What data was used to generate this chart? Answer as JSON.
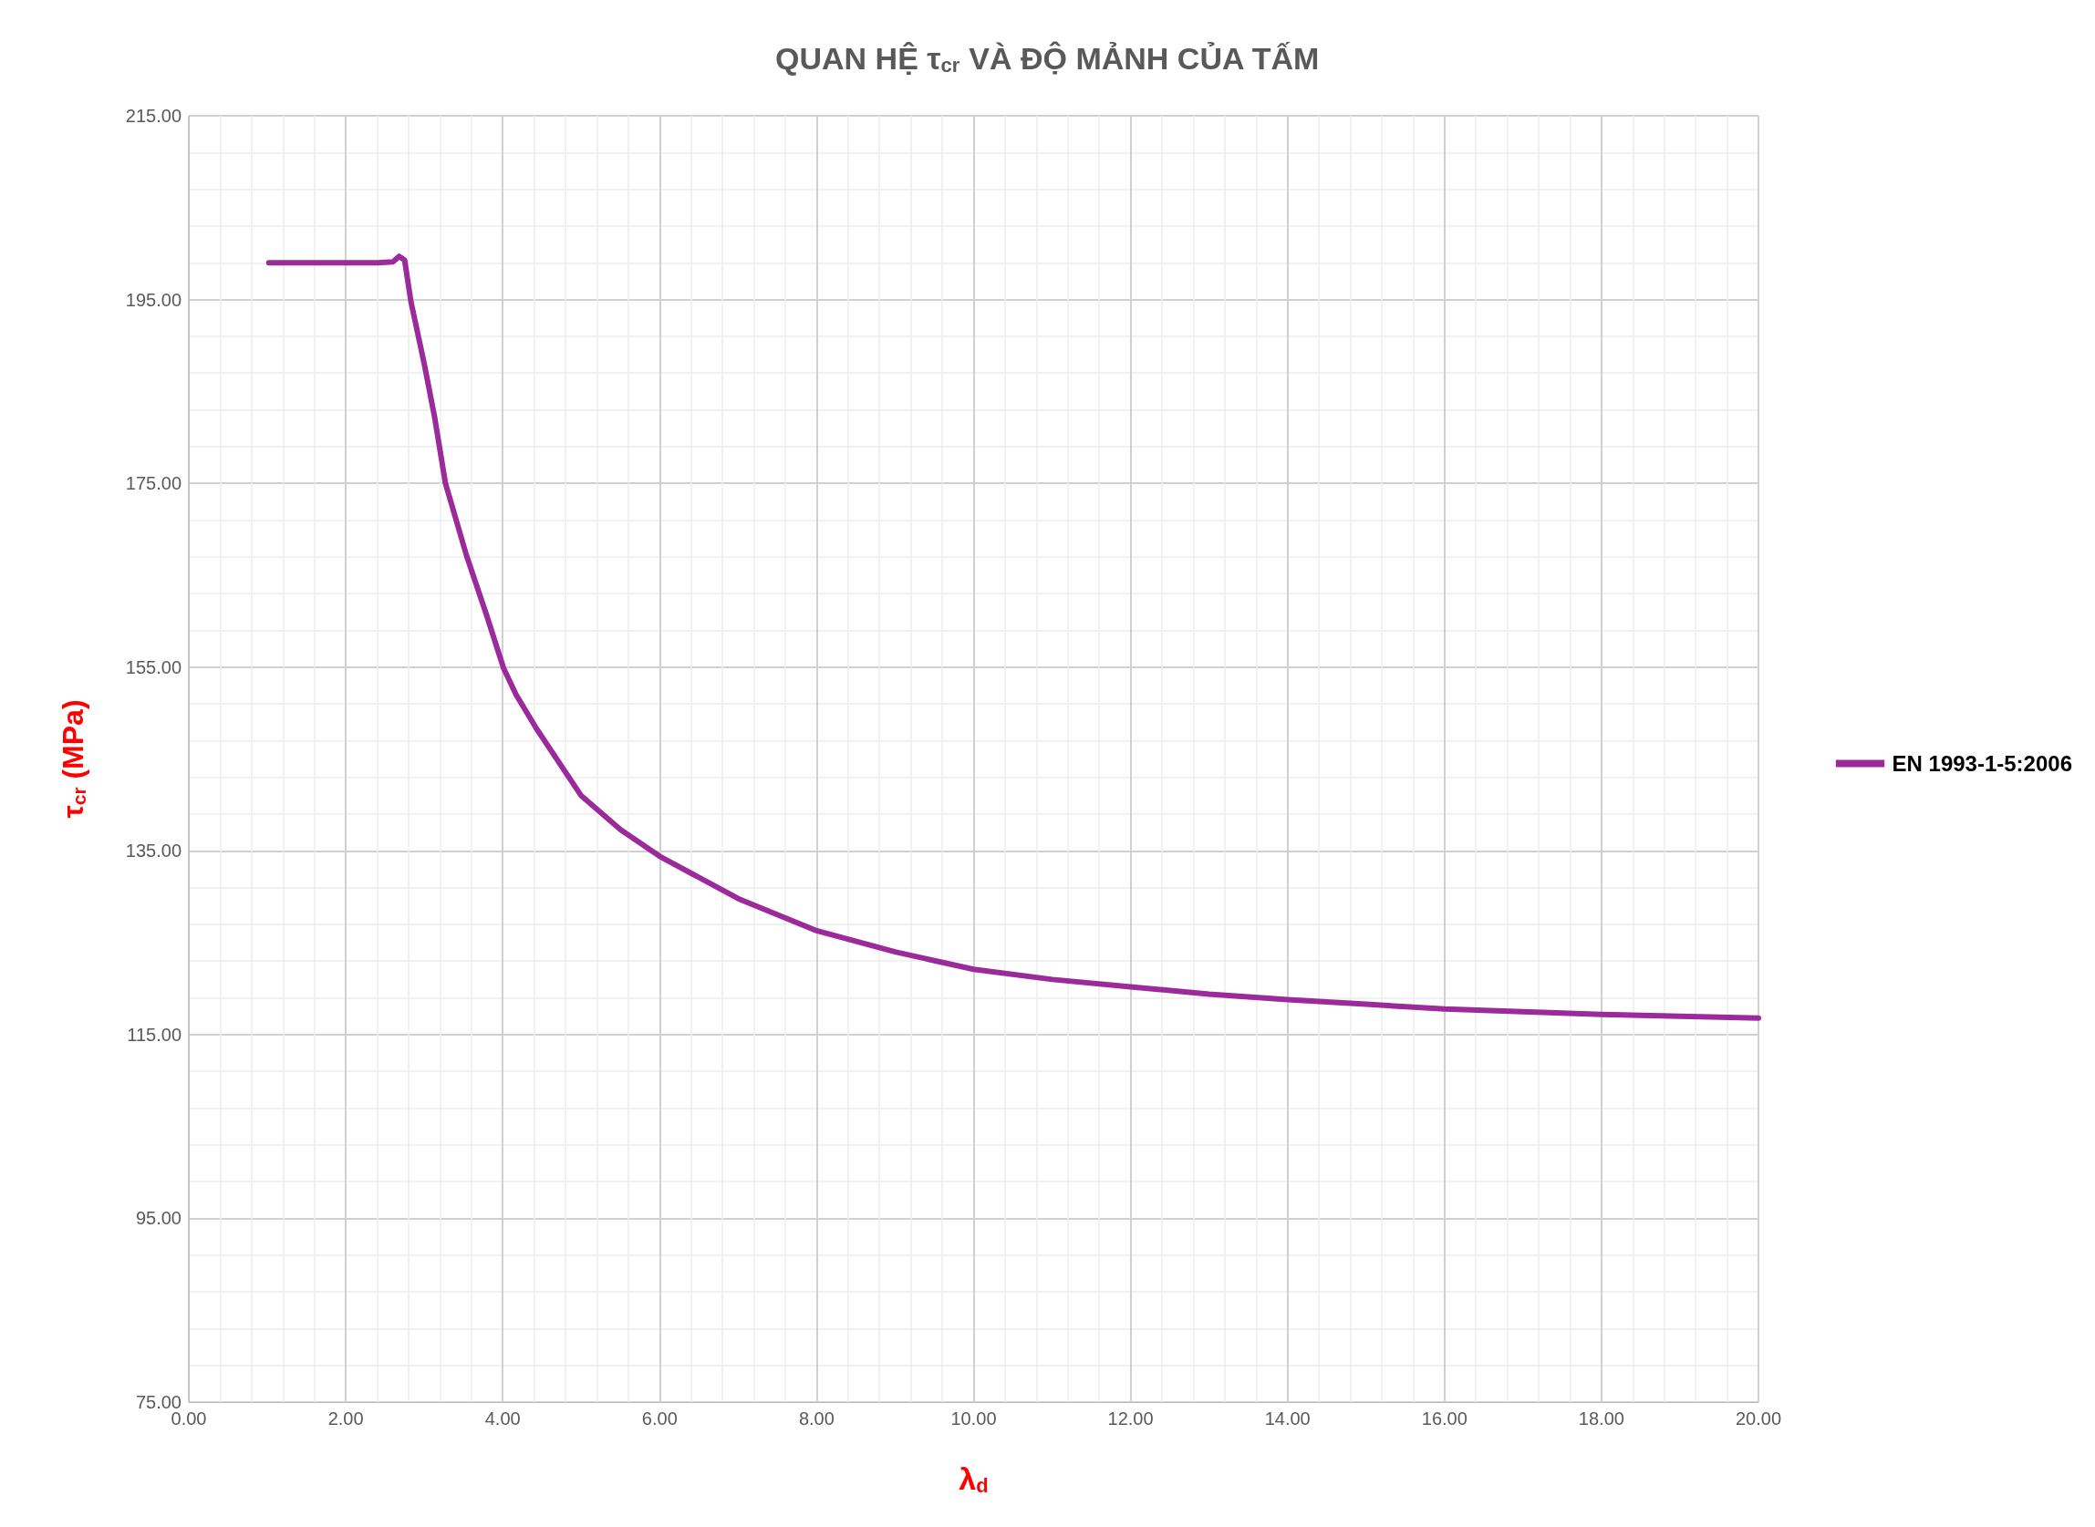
{
  "chart_data": {
    "type": "line",
    "title": "QUAN HỆ τ$_{cr}$ VÀ ĐỘ MẢNH CỦA TẤM",
    "xlabel": "λ$_{d}$",
    "ylabel": "τ$_{cr}$ (MPa)",
    "series": [
      {
        "name": "EN 1993-1-5:2006",
        "color": "#9b2a9b",
        "x": [
          1.02,
          1.5,
          2.0,
          2.4,
          2.6,
          2.68,
          2.75,
          2.83,
          3.0,
          3.13,
          3.27,
          3.54,
          3.8,
          4.01,
          4.17,
          4.43,
          5.0,
          5.5,
          6.0,
          7.0,
          8.0,
          9.0,
          10.0,
          11.0,
          12.0,
          13.0,
          14.0,
          15.0,
          16.0,
          17.0,
          18.0,
          19.0,
          20.0
        ],
        "values": [
          199.0,
          199.0,
          199.0,
          199.0,
          199.1,
          199.7,
          199.3,
          194.8,
          188.0,
          182.3,
          175.0,
          167.1,
          160.5,
          154.9,
          152.0,
          148.3,
          141.0,
          137.3,
          134.4,
          129.8,
          126.3,
          124.0,
          122.1,
          121.0,
          120.2,
          119.4,
          118.8,
          118.3,
          117.8,
          117.5,
          117.2,
          117.0,
          116.8
        ]
      }
    ],
    "xlim": [
      0,
      20
    ],
    "ylim": [
      75,
      215
    ],
    "xticks": [
      {
        "value": 0,
        "label": "0.00"
      },
      {
        "value": 2,
        "label": "2.00"
      },
      {
        "value": 4,
        "label": "4.00"
      },
      {
        "value": 6,
        "label": "6.00"
      },
      {
        "value": 8,
        "label": "8.00"
      },
      {
        "value": 10,
        "label": "10.00"
      },
      {
        "value": 12,
        "label": "12.00"
      },
      {
        "value": 14,
        "label": "14.00"
      },
      {
        "value": 16,
        "label": "16.00"
      },
      {
        "value": 18,
        "label": "18.00"
      },
      {
        "value": 20,
        "label": "20.00"
      }
    ],
    "yticks": [
      {
        "value": 75,
        "label": "75.00"
      },
      {
        "value": 95,
        "label": "95.00"
      },
      {
        "value": 115,
        "label": "115.00"
      },
      {
        "value": 135,
        "label": "135.00"
      },
      {
        "value": 155,
        "label": "155.00"
      },
      {
        "value": 175,
        "label": "175.00"
      },
      {
        "value": 195,
        "label": "195.00"
      },
      {
        "value": 215,
        "label": "215.00"
      }
    ],
    "grid": true,
    "legend": "right",
    "marker": "none",
    "line_style": "solid"
  }
}
